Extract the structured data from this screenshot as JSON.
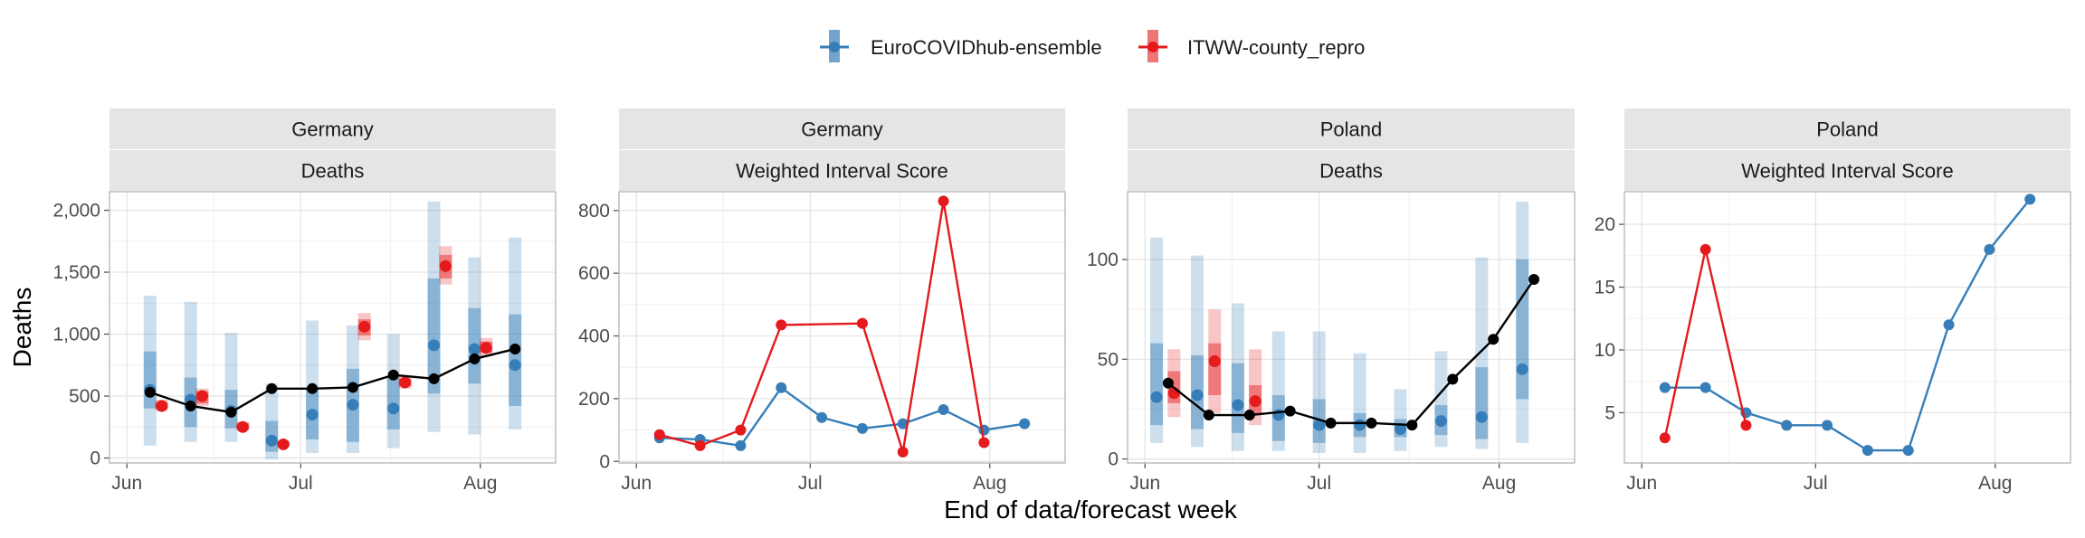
{
  "legend": {
    "items": [
      {
        "label": "EuroCOVIDhub-ensemble",
        "color": "#377EB8"
      },
      {
        "label": "ITWW-county_repro",
        "color": "#E41A1C"
      }
    ]
  },
  "axes": {
    "xlabel": "End of data/forecast week",
    "ylabel": "Deaths"
  },
  "chart_data": [
    {
      "type": "line",
      "facet": [
        "Germany",
        "Deaths"
      ],
      "x_ticks": [
        {
          "label": "Jun",
          "date": "2021-06-01"
        },
        {
          "label": "Jul",
          "date": "2021-07-01"
        },
        {
          "label": "Aug",
          "date": "2021-08-01"
        }
      ],
      "ylim": [
        -40,
        2150
      ],
      "y_ticks": [
        {
          "value": 0,
          "label": "0"
        },
        {
          "value": 500,
          "label": "500"
        },
        {
          "value": 1000,
          "label": "1,000"
        },
        {
          "value": 1500,
          "label": "1,500"
        },
        {
          "value": 2000,
          "label": "2,000"
        }
      ],
      "observed": {
        "x": [
          "2021-06-05",
          "2021-06-12",
          "2021-06-19",
          "2021-06-26",
          "2021-07-03",
          "2021-07-10",
          "2021-07-17",
          "2021-07-24",
          "2021-07-31",
          "2021-08-07"
        ],
        "y": [
          530,
          420,
          370,
          560,
          560,
          570,
          670,
          640,
          800,
          880
        ]
      },
      "forecasts": [
        {
          "model": "EuroCOVIDhub-ensemble",
          "x": [
            "2021-06-05",
            "2021-06-12",
            "2021-06-19",
            "2021-06-26",
            "2021-07-03",
            "2021-07-10",
            "2021-07-17",
            "2021-07-24",
            "2021-07-31",
            "2021-08-07"
          ],
          "median": [
            550,
            470,
            380,
            140,
            350,
            430,
            400,
            910,
            880,
            750
          ],
          "inner": [
            [
              400,
              860
            ],
            [
              250,
              650
            ],
            [
              240,
              550
            ],
            [
              50,
              300
            ],
            [
              150,
              550
            ],
            [
              130,
              720
            ],
            [
              230,
              650
            ],
            [
              520,
              1450
            ],
            [
              600,
              1210
            ],
            [
              420,
              1160
            ]
          ],
          "outer": [
            [
              100,
              1310
            ],
            [
              130,
              1260
            ],
            [
              130,
              1010
            ],
            [
              -10,
              600
            ],
            [
              40,
              1110
            ],
            [
              40,
              1070
            ],
            [
              80,
              1000
            ],
            [
              210,
              2070
            ],
            [
              190,
              1620
            ],
            [
              230,
              1780
            ]
          ]
        },
        {
          "model": "ITWW-county_repro",
          "x": [
            "2021-06-07",
            "2021-06-14",
            "2021-06-21",
            "2021-06-28",
            "2021-07-05",
            "2021-07-12",
            "2021-07-19",
            "2021-07-26",
            "2021-08-02",
            "2021-08-09"
          ],
          "median": [
            420,
            500,
            250,
            110,
            null,
            1060,
            610,
            1550,
            890,
            null
          ],
          "inner": [
            [
              400,
              450
            ],
            [
              440,
              540
            ],
            [
              230,
              280
            ],
            [
              100,
              130
            ],
            null,
            [
              990,
              1120
            ],
            [
              580,
              640
            ],
            [
              1450,
              1640
            ],
            [
              850,
              940
            ],
            null
          ],
          "outer": [
            [
              380,
              470
            ],
            [
              420,
              560
            ],
            [
              220,
              290
            ],
            [
              90,
              140
            ],
            null,
            [
              950,
              1170
            ],
            [
              560,
              660
            ],
            [
              1400,
              1710
            ],
            [
              820,
              970
            ],
            null
          ]
        }
      ]
    },
    {
      "type": "line",
      "facet": [
        "Germany",
        "Weighted Interval Score"
      ],
      "x_ticks": [
        {
          "label": "Jun",
          "date": "2021-06-01"
        },
        {
          "label": "Jul",
          "date": "2021-07-01"
        },
        {
          "label": "Aug",
          "date": "2021-08-01"
        }
      ],
      "ylim": [
        -5,
        860
      ],
      "y_ticks": [
        {
          "value": 0,
          "label": "0"
        },
        {
          "value": 200,
          "label": "200"
        },
        {
          "value": 400,
          "label": "400"
        },
        {
          "value": 600,
          "label": "600"
        },
        {
          "value": 800,
          "label": "800"
        }
      ],
      "series": [
        {
          "name": "EuroCOVIDhub-ensemble",
          "x": [
            "2021-06-05",
            "2021-06-12",
            "2021-06-19",
            "2021-06-26",
            "2021-07-03",
            "2021-07-10",
            "2021-07-17",
            "2021-07-24",
            "2021-07-31",
            "2021-08-07"
          ],
          "y": [
            75,
            70,
            50,
            235,
            140,
            105,
            120,
            165,
            100,
            120
          ]
        },
        {
          "name": "ITWW-county_repro",
          "x": [
            "2021-06-05",
            "2021-06-12",
            "2021-06-19",
            "2021-06-26",
            "2021-07-10",
            "2021-07-17",
            "2021-07-24",
            "2021-07-31"
          ],
          "y": [
            85,
            50,
            100,
            435,
            440,
            30,
            830,
            60
          ]
        }
      ]
    },
    {
      "type": "line",
      "facet": [
        "Poland",
        "Deaths"
      ],
      "x_ticks": [
        {
          "label": "Jun",
          "date": "2021-06-01"
        },
        {
          "label": "Jul",
          "date": "2021-07-01"
        },
        {
          "label": "Aug",
          "date": "2021-08-01"
        }
      ],
      "ylim": [
        -2,
        134
      ],
      "y_ticks": [
        {
          "value": 0,
          "label": "0"
        },
        {
          "value": 50,
          "label": "50"
        },
        {
          "value": 100,
          "label": "100"
        }
      ],
      "observed": {
        "x": [
          "2021-06-05",
          "2021-06-12",
          "2021-06-19",
          "2021-06-26",
          "2021-07-03",
          "2021-07-10",
          "2021-07-17",
          "2021-07-24",
          "2021-07-31",
          "2021-08-07"
        ],
        "y": [
          38,
          22,
          22,
          24,
          18,
          18,
          17,
          40,
          60,
          90
        ]
      },
      "forecasts": [
        {
          "model": "EuroCOVIDhub-ensemble",
          "x": [
            "2021-06-03",
            "2021-06-10",
            "2021-06-17",
            "2021-06-24",
            "2021-07-01",
            "2021-07-08",
            "2021-07-15",
            "2021-07-22",
            "2021-07-29",
            "2021-08-05"
          ],
          "median": [
            31,
            32,
            27,
            22,
            17,
            17,
            15,
            19,
            21,
            45
          ],
          "inner": [
            [
              17,
              58
            ],
            [
              15,
              52
            ],
            [
              13,
              48
            ],
            [
              9,
              32
            ],
            [
              8,
              30
            ],
            [
              11,
              23
            ],
            [
              11,
              20
            ],
            [
              12,
              27
            ],
            [
              10,
              46
            ],
            [
              30,
              100
            ]
          ],
          "outer": [
            [
              8,
              111
            ],
            [
              6,
              102
            ],
            [
              4,
              78
            ],
            [
              4,
              64
            ],
            [
              3,
              64
            ],
            [
              3,
              53
            ],
            [
              4,
              35
            ],
            [
              6,
              54
            ],
            [
              5,
              101
            ],
            [
              8,
              129
            ]
          ]
        },
        {
          "model": "ITWW-county_repro",
          "x": [
            "2021-06-06",
            "2021-06-13",
            "2021-06-20"
          ],
          "median": [
            33,
            49,
            29
          ],
          "inner": [
            [
              28,
              44
            ],
            [
              32,
              58
            ],
            [
              22,
              37
            ]
          ],
          "outer": [
            [
              21,
              55
            ],
            [
              23,
              75
            ],
            [
              17,
              55
            ]
          ]
        }
      ]
    },
    {
      "type": "line",
      "facet": [
        "Poland",
        "Weighted Interval Score"
      ],
      "x_ticks": [
        {
          "label": "Jun",
          "date": "2021-06-01"
        },
        {
          "label": "Jul",
          "date": "2021-07-01"
        },
        {
          "label": "Aug",
          "date": "2021-08-01"
        }
      ],
      "ylim": [
        1,
        22.6
      ],
      "y_ticks": [
        {
          "value": 5,
          "label": "5"
        },
        {
          "value": 10,
          "label": "10"
        },
        {
          "value": 15,
          "label": "15"
        },
        {
          "value": 20,
          "label": "20"
        }
      ],
      "series": [
        {
          "name": "EuroCOVIDhub-ensemble",
          "x": [
            "2021-06-05",
            "2021-06-12",
            "2021-06-19",
            "2021-06-26",
            "2021-07-03",
            "2021-07-10",
            "2021-07-17",
            "2021-07-24",
            "2021-07-31",
            "2021-08-07"
          ],
          "y": [
            7,
            7,
            5,
            4,
            4,
            2,
            2,
            12,
            18,
            22
          ]
        },
        {
          "name": "ITWW-county_repro",
          "x": [
            "2021-06-05",
            "2021-06-12",
            "2021-06-19"
          ],
          "y": [
            3,
            18,
            4
          ]
        }
      ]
    }
  ]
}
